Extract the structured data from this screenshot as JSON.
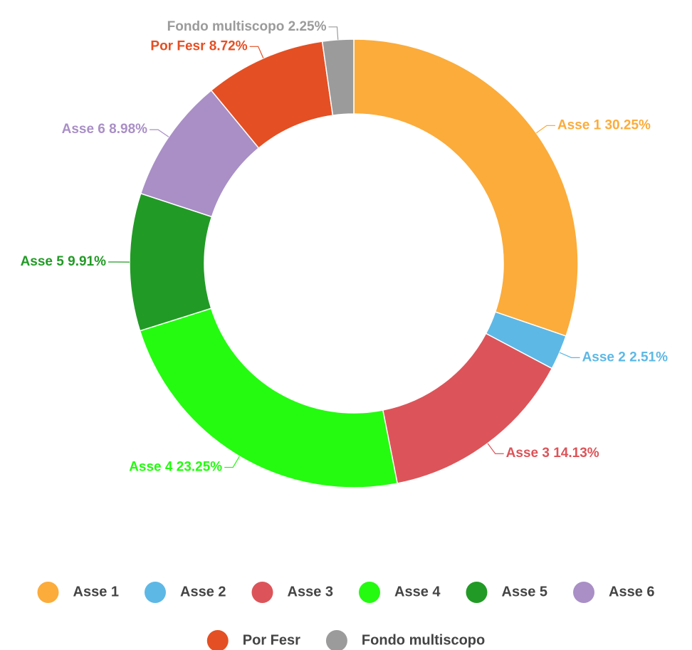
{
  "chart_data": {
    "type": "pie",
    "categories": [
      "Asse 1",
      "Asse 2",
      "Asse 3",
      "Asse 4",
      "Asse 5",
      "Asse 6",
      "Por Fesr",
      "Fondo multiscopo"
    ],
    "values": [
      30.25,
      2.51,
      14.13,
      23.25,
      9.91,
      8.98,
      8.72,
      2.25
    ],
    "value_labels": [
      "30.25%",
      "2.51%",
      "14.13%",
      "23.25%",
      "9.91%",
      "8.98%",
      "8.72%",
      "2.25%"
    ],
    "colors": [
      "#fbac3b",
      "#5db8e6",
      "#dc5459",
      "#24fb10",
      "#229a26",
      "#a98fc6",
      "#e44f23",
      "#9b9b9b"
    ],
    "donut": true,
    "legend": "bottom"
  }
}
